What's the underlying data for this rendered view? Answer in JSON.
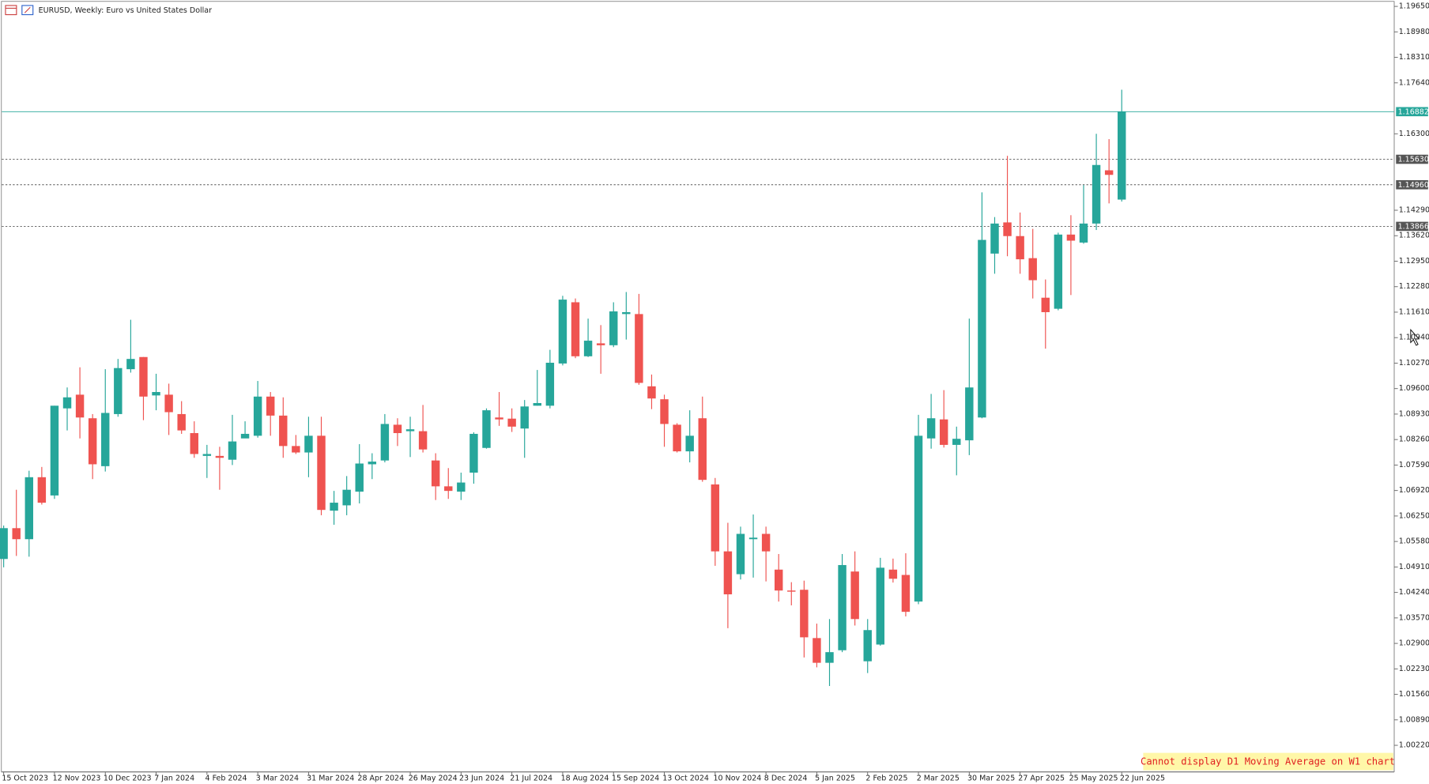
{
  "chart_data": {
    "type": "candlestick",
    "title": "EURUSD, Weekly:  Euro vs United States Dollar",
    "notice": "Cannot display D1 Moving Average on W1 chart",
    "up_color": "#26a69a",
    "down_color": "#ef5350",
    "categories": [
      "15 Oct 2023",
      null,
      null,
      null,
      "12 Nov 2023",
      null,
      null,
      null,
      "10 Dec 2023",
      null,
      null,
      null,
      "7 Jan 2024",
      null,
      null,
      null,
      "4 Feb 2024",
      null,
      null,
      null,
      "3 Mar 2024",
      null,
      null,
      null,
      "31 Mar 2024",
      null,
      null,
      null,
      "28 Apr 2024",
      null,
      null,
      null,
      "26 May 2024",
      null,
      null,
      null,
      "23 Jun 2024",
      null,
      null,
      null,
      "21 Jul 2024",
      null,
      null,
      null,
      "18 Aug 2024",
      null,
      null,
      null,
      "15 Sep 2024",
      null,
      null,
      null,
      "13 Oct 2024",
      null,
      null,
      null,
      "10 Nov 2024",
      null,
      null,
      null,
      "8 Dec 2024",
      null,
      null,
      null,
      "5 Jan 2025",
      null,
      null,
      null,
      "2 Feb 2025",
      null,
      null,
      null,
      "2 Mar 2025",
      null,
      null,
      null,
      "30 Mar 2025",
      null,
      null,
      null,
      "27 Apr 2025",
      null,
      null,
      null,
      "25 May 2025",
      null,
      null,
      null,
      "22 Jun 2025"
    ],
    "open": [
      1.0512,
      1.0593,
      1.0564,
      1.0727,
      1.0679,
      1.0908,
      1.0944,
      1.0882,
      1.0756,
      1.0893,
      1.1011,
      1.1043,
      1.0942,
      1.0944,
      1.0893,
      1.0843,
      1.0783,
      1.0783,
      1.0773,
      1.0829,
      1.0836,
      1.0939,
      1.0889,
      1.0809,
      1.0792,
      1.0836,
      1.0639,
      1.0653,
      1.0689,
      1.0761,
      1.0771,
      1.0865,
      1.0848,
      1.0848,
      1.0771,
      1.0703,
      1.0689,
      1.0739,
      1.0804,
      1.0884,
      1.0881,
      1.0855,
      1.0915,
      1.0915,
      1.1026,
      1.1187,
      1.1045,
      1.1079,
      1.1074,
      1.1156,
      1.1156,
      1.0966,
      1.0932,
      1.0865,
      1.0795,
      1.0882,
      1.0708,
      1.0532,
      1.0472,
      1.0564,
      1.0578,
      1.0484,
      1.0429,
      1.0431,
      1.0304,
      1.0239,
      1.0272,
      1.0479,
      1.0243,
      1.0287,
      1.0484,
      1.047,
      1.04,
      1.0829,
      1.0879,
      1.0812,
      1.0824,
      1.0884,
      1.1315,
      1.1397,
      1.1361,
      1.1303,
      1.1199,
      1.117,
      1.1365,
      1.1344,
      1.1394,
      1.1534,
      1.1457
    ],
    "high": [
      1.06,
      1.0694,
      1.0744,
      1.0754,
      1.0915,
      1.0963,
      1.1016,
      1.0893,
      1.1011,
      1.1038,
      1.1141,
      1.1043,
      1.0999,
      1.0973,
      1.0927,
      1.0874,
      1.0812,
      1.0807,
      1.0891,
      1.0874,
      1.098,
      1.0951,
      1.0937,
      1.0838,
      1.0886,
      1.0886,
      1.0691,
      1.073,
      1.0814,
      1.079,
      1.0893,
      1.0882,
      1.0886,
      1.0917,
      1.079,
      1.0751,
      1.0739,
      1.0845,
      1.0908,
      1.0951,
      1.0908,
      1.093,
      1.1009,
      1.1062,
      1.1204,
      1.1197,
      1.1144,
      1.1127,
      1.1187,
      1.1214,
      1.1209,
      1.0997,
      1.0944,
      1.0869,
      1.0903,
      1.0939,
      1.0725,
      1.0607,
      1.0597,
      1.0629,
      1.0597,
      1.0525,
      1.0451,
      1.0455,
      1.0342,
      1.0354,
      1.0525,
      1.0532,
      1.0354,
      1.0515,
      1.0513,
      1.0527,
      1.0891,
      1.0946,
      1.0956,
      1.086,
      1.1144,
      1.1476,
      1.1411,
      1.1572,
      1.1423,
      1.138,
      1.1247,
      1.137,
      1.1416,
      1.1495,
      1.163,
      1.1616,
      1.1746
    ],
    "low": [
      1.049,
      1.052,
      1.0518,
      1.0655,
      1.067,
      1.085,
      1.0829,
      1.0722,
      1.0742,
      1.0886,
      1.1002,
      1.0877,
      1.0903,
      1.0838,
      1.0841,
      1.0778,
      1.0725,
      1.0694,
      1.0759,
      1.0831,
      1.0831,
      1.0836,
      1.0778,
      1.0788,
      1.0727,
      1.0627,
      1.0602,
      1.0627,
      1.0658,
      1.0722,
      1.0766,
      1.0809,
      1.078,
      1.0792,
      1.0667,
      1.067,
      1.0667,
      1.071,
      1.0802,
      1.0862,
      1.0846,
      1.0778,
      1.0915,
      1.0908,
      1.1021,
      1.104,
      1.1043,
      1.0999,
      1.1069,
      1.1089,
      1.097,
      1.0906,
      1.0807,
      1.0792,
      1.0766,
      1.0715,
      1.0494,
      1.033,
      1.0458,
      1.0463,
      1.0453,
      1.04,
      1.039,
      1.0253,
      1.0227,
      1.0178,
      1.0267,
      1.0337,
      1.0212,
      1.0284,
      1.045,
      1.0361,
      1.0393,
      1.0802,
      1.0805,
      1.0732,
      1.0785,
      1.0882,
      1.1262,
      1.1308,
      1.1262,
      1.1197,
      1.1065,
      1.1166,
      1.1206,
      1.1341,
      1.1377,
      1.1447,
      1.1452
    ],
    "close": [
      1.0593,
      1.0564,
      1.0727,
      1.066,
      1.0915,
      1.0937,
      1.0884,
      1.0761,
      1.0896,
      1.1014,
      1.1038,
      1.0939,
      1.0951,
      1.0898,
      1.085,
      1.0788,
      1.0788,
      1.0778,
      1.0821,
      1.0841,
      1.0939,
      1.0889,
      1.0809,
      1.0792,
      1.0836,
      1.0641,
      1.066,
      1.0694,
      1.0763,
      1.0768,
      1.0867,
      1.0843,
      1.0853,
      1.08,
      1.0703,
      1.0691,
      1.0713,
      1.0841,
      1.0903,
      1.0879,
      1.086,
      1.0913,
      1.0922,
      1.1028,
      1.1194,
      1.1045,
      1.1086,
      1.1074,
      1.1163,
      1.1161,
      1.0975,
      1.0934,
      1.0867,
      1.0795,
      1.0836,
      1.072,
      1.0532,
      1.0419,
      1.0578,
      1.0568,
      1.0532,
      1.0429,
      1.0426,
      1.0306,
      1.0239,
      1.0267,
      1.0496,
      1.0354,
      1.0325,
      1.0489,
      1.046,
      1.0373,
      1.0836,
      1.0882,
      1.0812,
      1.0828,
      1.0963,
      1.1351,
      1.1394,
      1.1361,
      1.13,
      1.1245,
      1.1161,
      1.1365,
      1.1349,
      1.1394,
      1.1548,
      1.1522,
      1.16882
    ],
    "ylim": [
      0.9954,
      1.1977
    ],
    "yticks": [
      {
        "value": 1.1965,
        "label": "1.19650"
      },
      {
        "value": 1.1898,
        "label": "1.18980"
      },
      {
        "value": 1.1831,
        "label": "1.18310"
      },
      {
        "value": 1.1764,
        "label": "1.17640"
      },
      {
        "value": 1.163,
        "label": "1.16300"
      },
      {
        "value": 1.1429,
        "label": "1.14290"
      },
      {
        "value": 1.1362,
        "label": "1.13620"
      },
      {
        "value": 1.1295,
        "label": "1.12950"
      },
      {
        "value": 1.1228,
        "label": "1.12280"
      },
      {
        "value": 1.1161,
        "label": "1.11610"
      },
      {
        "value": 1.1094,
        "label": "1.10940"
      },
      {
        "value": 1.1027,
        "label": "1.10270"
      },
      {
        "value": 1.096,
        "label": "1.09600"
      },
      {
        "value": 1.0893,
        "label": "1.08930"
      },
      {
        "value": 1.0826,
        "label": "1.08260"
      },
      {
        "value": 1.0759,
        "label": "1.07590"
      },
      {
        "value": 1.0692,
        "label": "1.06920"
      },
      {
        "value": 1.0625,
        "label": "1.06250"
      },
      {
        "value": 1.0558,
        "label": "1.05580"
      },
      {
        "value": 1.0491,
        "label": "1.04910"
      },
      {
        "value": 1.0424,
        "label": "1.04240"
      },
      {
        "value": 1.0357,
        "label": "1.03570"
      },
      {
        "value": 1.029,
        "label": "1.02900"
      },
      {
        "value": 1.0223,
        "label": "1.02230"
      },
      {
        "value": 1.0156,
        "label": "1.01560"
      },
      {
        "value": 1.0089,
        "label": "1.00890"
      },
      {
        "value": 1.0022,
        "label": "1.00220"
      }
    ],
    "levels": [
      {
        "value": 1.16882,
        "label": "1.16882",
        "style": "solid",
        "color": "#26a69a"
      },
      {
        "value": 1.1563,
        "label": "1.15630",
        "style": "dashed",
        "color": "#555555"
      },
      {
        "value": 1.1496,
        "label": "1.14960",
        "style": "dashed",
        "color": "#555555"
      },
      {
        "value": 1.13866,
        "label": "1.13866",
        "style": "dashed",
        "color": "#555555"
      }
    ],
    "grid": false
  }
}
